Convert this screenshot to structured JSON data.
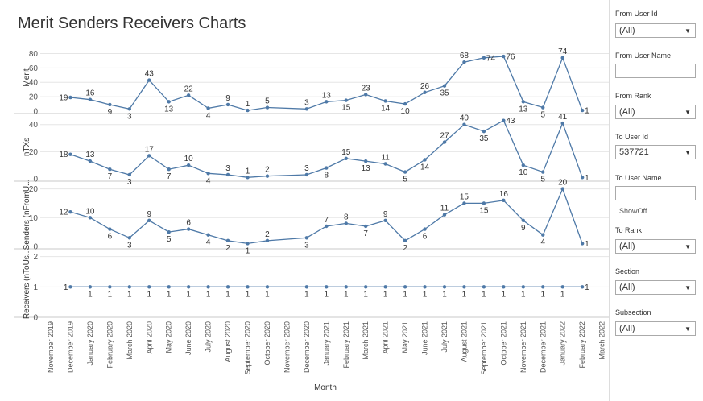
{
  "title": "Merit Senders Receivers Charts",
  "chart_data": {
    "type": "line",
    "xlabel": "Month",
    "x_categories": [
      "November 2019",
      "December 2019",
      "January 2020",
      "February 2020",
      "March 2020",
      "April 2020",
      "May 2020",
      "June 2020",
      "July 2020",
      "August 2020",
      "September 2020",
      "October 2020",
      "November 2020",
      "December 2020",
      "January 2021",
      "February 2021",
      "March 2021",
      "April 2021",
      "May 2021",
      "June 2021",
      "July 2021",
      "August 2021",
      "September 2021",
      "October 2021",
      "November 2021",
      "December 2021",
      "January 2022",
      "February 2022",
      "March 2022"
    ],
    "point_indices": [
      1,
      2,
      3,
      4,
      5,
      6,
      7,
      8,
      9,
      10,
      11,
      13,
      14,
      15,
      16,
      17,
      18,
      19,
      20,
      21,
      22,
      23,
      24,
      25,
      26,
      27
    ],
    "panels": [
      {
        "ylabel": "Merit",
        "ticks": [
          "0",
          "20",
          "40",
          "60",
          "80"
        ],
        "ylim": [
          0,
          85
        ],
        "values": [
          19,
          16,
          9,
          3,
          43,
          13,
          22,
          4,
          9,
          1,
          5,
          3,
          13,
          15,
          23,
          14,
          10,
          26,
          35,
          68,
          74,
          76,
          13,
          5,
          74,
          1
        ],
        "label_pos": [
          "left",
          "above",
          "below",
          "below",
          "above",
          "below",
          "above",
          "below",
          "above",
          "above",
          "above",
          "above",
          "above",
          "below",
          "above",
          "below",
          "below",
          "above",
          "below",
          "above",
          "right",
          "right",
          "below",
          "below",
          "above",
          "right"
        ]
      },
      {
        "ylabel": "nTXs",
        "ticks": [
          "0",
          "20",
          "40"
        ],
        "ylim": [
          0,
          44
        ],
        "values": [
          18,
          13,
          7,
          3,
          17,
          7,
          10,
          4,
          3,
          1,
          2,
          3,
          8,
          15,
          13,
          11,
          5,
          14,
          27,
          40,
          35,
          43,
          10,
          5,
          41,
          1
        ],
        "label_pos": [
          "left",
          "above",
          "below",
          "below",
          "above",
          "below",
          "above",
          "below",
          "above",
          "above",
          "above",
          "above",
          "below",
          "above",
          "below",
          "above",
          "below",
          "below",
          "above",
          "above",
          "below",
          "right",
          "below",
          "below",
          "above",
          "right"
        ]
      },
      {
        "ylabel": "Senders (nFromU...",
        "ticks": [
          "0",
          "10",
          "20"
        ],
        "ylim": [
          0,
          21
        ],
        "values": [
          12,
          10,
          6,
          3,
          9,
          5,
          6,
          4,
          2,
          1,
          2,
          3,
          7,
          8,
          7,
          9,
          2,
          6,
          11,
          15,
          15,
          16,
          9,
          4,
          20,
          1
        ],
        "label_pos": [
          "left",
          "above",
          "below",
          "below",
          "above",
          "below",
          "above",
          "below",
          "below",
          "below",
          "above",
          "below",
          "above",
          "above",
          "below",
          "above",
          "below",
          "below",
          "above",
          "above",
          "below",
          "above",
          "below",
          "below",
          "above",
          "right"
        ]
      },
      {
        "ylabel": "Receivers (nToUs...",
        "ticks": [
          "0",
          "1",
          "2"
        ],
        "ylim": [
          0,
          2.15
        ],
        "values": [
          1,
          1,
          1,
          1,
          1,
          1,
          1,
          1,
          1,
          1,
          1,
          1,
          1,
          1,
          1,
          1,
          1,
          1,
          1,
          1,
          1,
          1,
          1,
          1,
          1,
          1
        ],
        "label_pos": [
          "left",
          "below",
          "below",
          "below",
          "below",
          "below",
          "below",
          "below",
          "below",
          "below",
          "below",
          "below",
          "below",
          "below",
          "below",
          "below",
          "below",
          "below",
          "below",
          "below",
          "below",
          "below",
          "below",
          "below",
          "below",
          "right"
        ]
      }
    ],
    "colors": {
      "line": "#4e79a7",
      "grid": "#e6e6e6",
      "axis": "#c8c8c8"
    }
  },
  "filters": {
    "from_user_id": {
      "label": "From User Id",
      "value": "(All)"
    },
    "from_user_name": {
      "label": "From User Name",
      "value": ""
    },
    "from_rank": {
      "label": "From Rank",
      "value": "(All)"
    },
    "to_user_id": {
      "label": "To User Id",
      "value": "537721"
    },
    "to_user_name": {
      "label": "To User Name",
      "value": "",
      "note": "ShowOff"
    },
    "to_rank": {
      "label": "To Rank",
      "value": "(All)"
    },
    "section": {
      "label": "Section",
      "value": "(All)"
    },
    "subsection": {
      "label": "Subsection",
      "value": "(All)"
    }
  },
  "icons": {
    "dropdown": "caret-down-icon"
  }
}
